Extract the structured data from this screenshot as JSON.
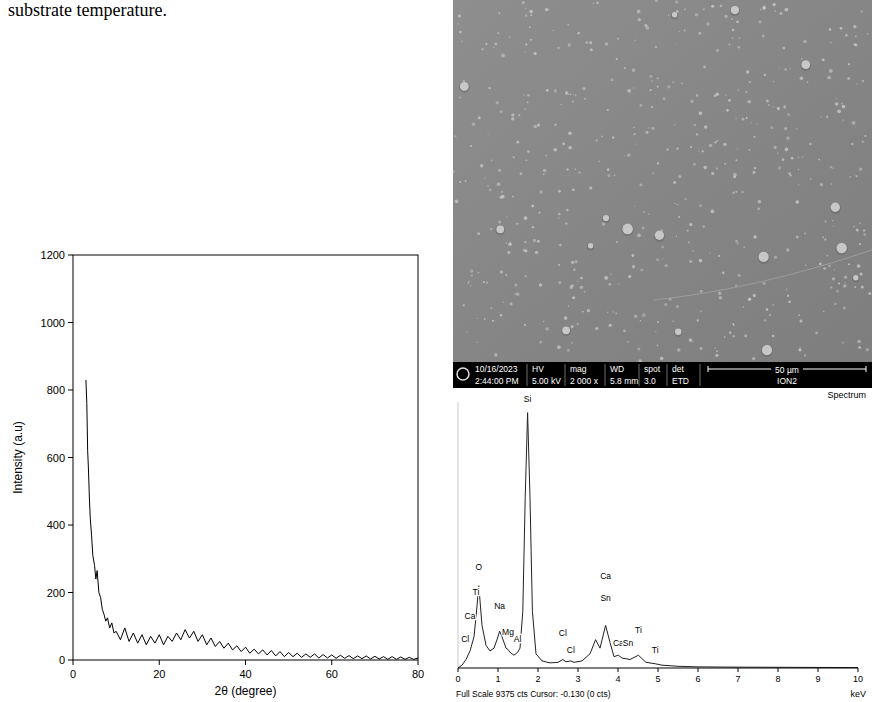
{
  "caption": "substrate temperature.",
  "chart_data": [
    {
      "type": "line",
      "x_label": "2θ (degree)",
      "y_label": "Intensity (a.u)",
      "color": "#000000",
      "x": [
        3,
        3.2,
        3.4,
        3.6,
        3.8,
        4,
        4.3,
        4.6,
        5,
        5.3,
        5.6,
        6,
        6.4,
        6.8,
        7.2,
        7.6,
        8,
        8.5,
        9,
        9.5,
        10,
        11,
        12,
        13,
        14,
        15,
        16,
        17,
        18,
        19,
        20,
        21,
        22,
        23,
        24,
        25,
        26,
        27,
        28,
        29,
        30,
        31,
        32,
        33,
        34,
        35,
        36,
        37,
        38,
        39,
        40,
        41,
        42,
        43,
        44,
        45,
        46,
        47,
        48,
        49,
        50,
        51,
        52,
        53,
        54,
        55,
        56,
        57,
        58,
        59,
        60,
        61,
        62,
        63,
        64,
        65,
        66,
        67,
        68,
        69,
        70,
        71,
        72,
        73,
        74,
        75,
        76,
        77,
        78,
        79,
        80
      ],
      "values": [
        830,
        760,
        620,
        560,
        480,
        420,
        370,
        310,
        280,
        240,
        265,
        200,
        185,
        150,
        135,
        115,
        125,
        95,
        110,
        80,
        85,
        60,
        95,
        55,
        80,
        50,
        75,
        45,
        70,
        50,
        75,
        45,
        70,
        55,
        80,
        60,
        90,
        65,
        85,
        55,
        75,
        45,
        65,
        40,
        55,
        35,
        50,
        30,
        42,
        25,
        38,
        20,
        32,
        18,
        30,
        15,
        28,
        12,
        25,
        10,
        22,
        10,
        20,
        8,
        18,
        8,
        18,
        6,
        16,
        6,
        15,
        5,
        14,
        5,
        13,
        4,
        12,
        4,
        12,
        3,
        11,
        3,
        10,
        2,
        10,
        2,
        9,
        2,
        8,
        2,
        6
      ],
      "xlim": [
        0,
        80
      ],
      "xticks": [
        0,
        20,
        40,
        60,
        80
      ],
      "ylim": [
        0,
        1200
      ],
      "yticks": [
        0,
        200,
        400,
        600,
        800,
        1000,
        1200
      ]
    },
    {
      "type": "line",
      "title": "Spectrum",
      "x_label": "keV",
      "footer": "Full Scale 9375 cts Cursor: -0.130 (0 cts)",
      "color": "#222222",
      "tick_labels": "x",
      "x": [
        0,
        0.1,
        0.2,
        0.3,
        0.4,
        0.45,
        0.52,
        0.6,
        0.7,
        0.8,
        0.9,
        1.0,
        1.04,
        1.1,
        1.2,
        1.25,
        1.3,
        1.4,
        1.49,
        1.55,
        1.62,
        1.68,
        1.74,
        1.8,
        1.86,
        1.95,
        2.1,
        2.3,
        2.5,
        2.62,
        2.7,
        2.82,
        2.9,
        3.1,
        3.3,
        3.44,
        3.55,
        3.69,
        3.8,
        3.9,
        4.01,
        4.1,
        4.3,
        4.51,
        4.7,
        4.93,
        5.1,
        5.5,
        6,
        7,
        8,
        9,
        10
      ],
      "values": [
        0,
        100,
        300,
        600,
        1100,
        1800,
        2900,
        1500,
        800,
        600,
        700,
        1100,
        1300,
        1100,
        700,
        650,
        550,
        450,
        550,
        700,
        2000,
        6000,
        9000,
        6000,
        2000,
        500,
        250,
        180,
        200,
        300,
        220,
        250,
        200,
        250,
        500,
        1000,
        700,
        1500,
        900,
        400,
        450,
        350,
        300,
        450,
        200,
        150,
        100,
        60,
        40,
        30,
        25,
        20,
        15
      ],
      "xlim": [
        0,
        10
      ],
      "xticks": [
        0,
        1,
        2,
        3,
        4,
        5,
        6,
        7,
        8,
        9,
        10
      ],
      "ylim": [
        0,
        9375
      ],
      "peaks": [
        {
          "label": "Cl",
          "energy": 0.18,
          "level": 850
        },
        {
          "label": "Ca",
          "energy": 0.3,
          "level": 1650
        },
        {
          "label": "Ti",
          "energy": 0.45,
          "level": 2500
        },
        {
          "label": "O",
          "energy": 0.52,
          "level": 3400
        },
        {
          "label": "Na",
          "energy": 1.04,
          "level": 2000
        },
        {
          "label": "Mg",
          "energy": 1.25,
          "level": 1100
        },
        {
          "label": "Al",
          "energy": 1.49,
          "level": 850
        },
        {
          "label": "Si",
          "energy": 1.74,
          "level": 9300
        },
        {
          "label": "Cl",
          "energy": 2.62,
          "level": 1050
        },
        {
          "label": "Cl",
          "energy": 2.82,
          "level": 450
        },
        {
          "label": "Ca",
          "energy": 3.69,
          "level": 3050
        },
        {
          "label": "Sn",
          "energy": 3.69,
          "level": 2300
        },
        {
          "label": "Ca",
          "energy": 4.01,
          "level": 700
        },
        {
          "label": "Sn",
          "energy": 4.25,
          "level": 700
        },
        {
          "label": "Ti",
          "energy": 4.51,
          "level": 1150
        },
        {
          "label": "Ti",
          "energy": 4.93,
          "level": 450
        }
      ]
    }
  ],
  "sem_image": {
    "date": "10/16/2023",
    "time": "2:44:00 PM",
    "info_heads": [
      "HV",
      "mag",
      "WD",
      "spot",
      "det"
    ],
    "info_values": [
      "5.00 kV",
      "2 000 x",
      "5.8 mm",
      "3.0",
      "ETD"
    ],
    "scale_bar": "50 µm",
    "label": "ION2"
  }
}
